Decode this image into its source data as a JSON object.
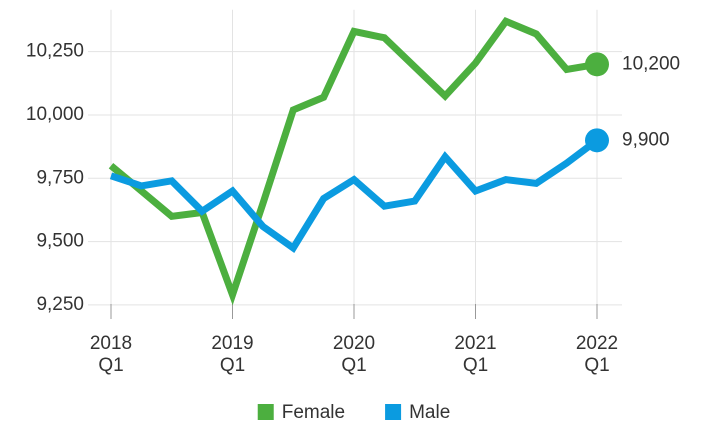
{
  "chart_data": {
    "type": "line",
    "categories": [
      "2018\nQ1",
      null,
      null,
      null,
      "2019\nQ1",
      null,
      null,
      null,
      "2020\nQ1",
      null,
      null,
      null,
      "2021\nQ1",
      null,
      null,
      null,
      "2022\nQ1"
    ],
    "series": [
      {
        "name": "Female",
        "color": "#4caf3f",
        "values": [
          9800,
          9700,
          9600,
          9615,
          9290,
          9650,
          10020,
          10070,
          10330,
          10305,
          10190,
          10075,
          10205,
          10370,
          10320,
          10180,
          10200
        ],
        "value_labels": [
          null,
          null,
          null,
          null,
          null,
          null,
          null,
          null,
          null,
          null,
          null,
          null,
          null,
          null,
          null,
          null,
          "10,200"
        ]
      },
      {
        "name": "Male",
        "color": "#0b9be0",
        "values": [
          9760,
          9720,
          9740,
          9620,
          9700,
          9560,
          9475,
          9670,
          9745,
          9640,
          9660,
          9835,
          9700,
          9745,
          9730,
          9810,
          9900
        ],
        "value_labels": [
          null,
          null,
          null,
          null,
          null,
          null,
          null,
          null,
          null,
          null,
          null,
          null,
          null,
          null,
          null,
          null,
          "9,900"
        ]
      }
    ],
    "ylim": [
      9230,
      10400
    ],
    "yticks": [
      {
        "value": 9250,
        "label": "9,250"
      },
      {
        "value": 9500,
        "label": "9,500"
      },
      {
        "value": 9750,
        "label": "9,750"
      },
      {
        "value": 10000,
        "label": "10,000"
      },
      {
        "value": 10250,
        "label": "10,250"
      }
    ],
    "grid": true,
    "legend": "bottom"
  }
}
